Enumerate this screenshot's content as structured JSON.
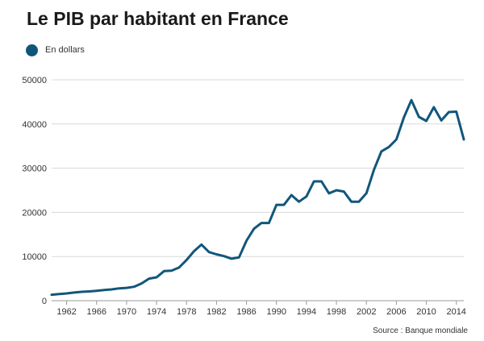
{
  "title": "Le PIB par habitant en France",
  "source": "Source : Banque mondiale",
  "colors": {
    "series": "#11567a",
    "grid": "#d9d9d9",
    "axis": "#999999"
  },
  "chart_data": {
    "type": "line",
    "title": "Le PIB par habitant en France",
    "xlabel": "",
    "ylabel": "",
    "xlim": [
      1960,
      2015
    ],
    "ylim": [
      0,
      50000
    ],
    "grid": true,
    "legend_position": "top-left",
    "y_ticks": [
      0,
      10000,
      20000,
      30000,
      40000,
      50000
    ],
    "y_tick_labels": [
      "0",
      "10000",
      "20000",
      "30000",
      "40000",
      "50000"
    ],
    "x_ticks": [
      1962,
      1966,
      1970,
      1974,
      1978,
      1982,
      1986,
      1990,
      1994,
      1998,
      2002,
      2006,
      2010,
      2014
    ],
    "x_tick_labels": [
      "1962",
      "1966",
      "1970",
      "1974",
      "1978",
      "1982",
      "1986",
      "1990",
      "1994",
      "1998",
      "2002",
      "2006",
      "2010",
      "2014"
    ],
    "series": [
      {
        "name": "En dollars",
        "x": [
          1960,
          1961,
          1962,
          1963,
          1964,
          1965,
          1966,
          1967,
          1968,
          1969,
          1970,
          1971,
          1972,
          1973,
          1974,
          1975,
          1976,
          1977,
          1978,
          1979,
          1980,
          1981,
          1982,
          1983,
          1984,
          1985,
          1986,
          1987,
          1988,
          1989,
          1990,
          1991,
          1992,
          1993,
          1994,
          1995,
          1996,
          1997,
          1998,
          1999,
          2000,
          2001,
          2002,
          2003,
          2004,
          2005,
          2006,
          2007,
          2008,
          2009,
          2010,
          2011,
          2012,
          2013,
          2014,
          2015
        ],
        "values": [
          1350,
          1500,
          1650,
          1850,
          2000,
          2100,
          2250,
          2400,
          2550,
          2800,
          2900,
          3150,
          3900,
          5000,
          5300,
          6700,
          6800,
          7500,
          9200,
          11200,
          12700,
          11000,
          10500,
          10100,
          9500,
          9800,
          13600,
          16300,
          17600,
          17600,
          21700,
          21700,
          23900,
          22400,
          23600,
          27000,
          27000,
          24300,
          25000,
          24700,
          22400,
          22400,
          24300,
          29600,
          33800,
          34800,
          36500,
          41500,
          45400,
          41600,
          40700,
          43800,
          40800,
          42700,
          42800,
          36500
        ]
      }
    ]
  }
}
